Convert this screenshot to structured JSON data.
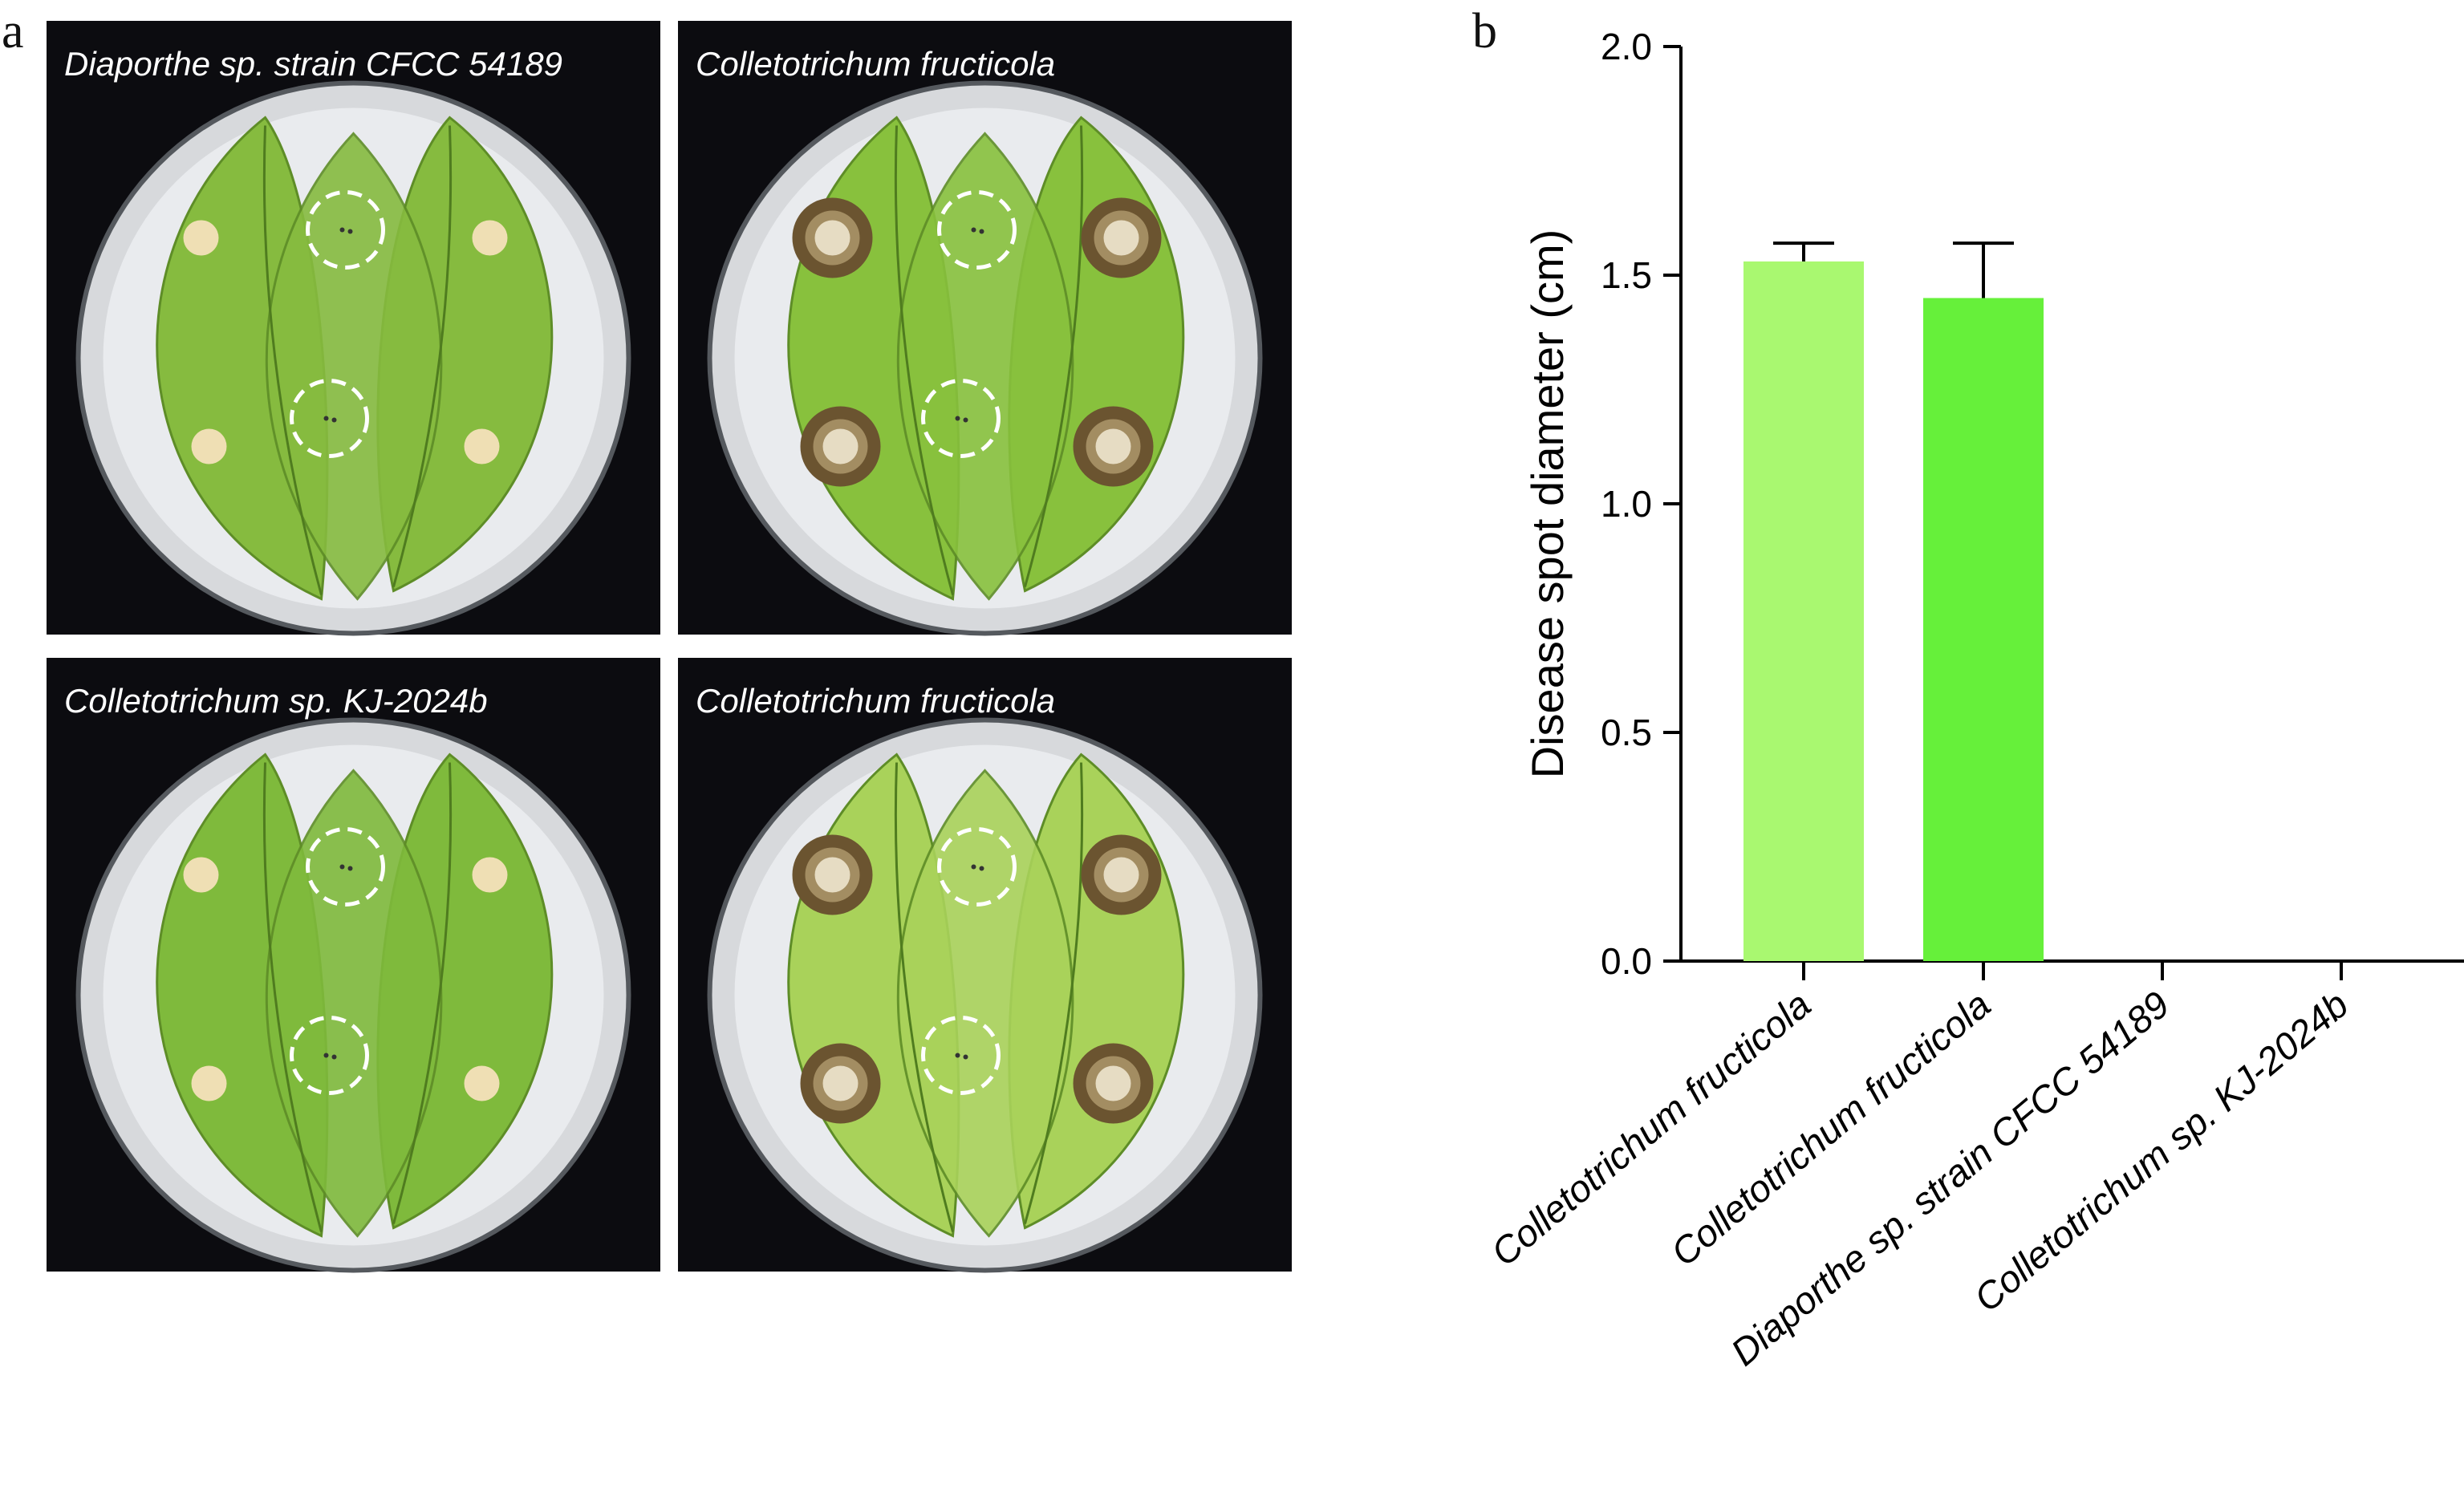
{
  "panel_a": {
    "label": "a",
    "photos": [
      {
        "caption": "Diaporthe sp. strain CFCC 54189",
        "symptom": "no-lesion",
        "leaf_color": "#86bb3f"
      },
      {
        "caption": "Colletotrichum fructicola",
        "symptom": "lesion",
        "leaf_color": "#88c13d"
      },
      {
        "caption": "Colletotrichum sp. KJ-2024b",
        "symptom": "no-lesion",
        "leaf_color": "#7fba3c"
      },
      {
        "caption": "Colletotrichum fructicola",
        "symptom": "lesion",
        "leaf_color": "#a9d25a"
      }
    ]
  },
  "panel_b": {
    "label": "b"
  },
  "chart_data": {
    "type": "bar",
    "ylabel": "Disease spot diameter (cm)",
    "ylim": [
      0,
      2.0
    ],
    "yticks": [
      0.0,
      0.5,
      1.0,
      1.5,
      2.0
    ],
    "ytick_labels": [
      "0.0",
      "0.5",
      "1.0",
      "1.5",
      "2.0"
    ],
    "categories": [
      "Colletotrichum fructicola",
      "Colletotrichum fructicola",
      "Diaporthe sp. strain CFCC 54189",
      "Colletotrichum sp. KJ-2024b"
    ],
    "values": [
      1.53,
      1.45,
      0,
      0
    ],
    "errors": [
      0.04,
      0.12,
      0,
      0
    ],
    "colors": [
      "#a9f870",
      "#66f03a",
      "#66f03a",
      "#66f03a"
    ],
    "grid": false,
    "legend": "none"
  }
}
